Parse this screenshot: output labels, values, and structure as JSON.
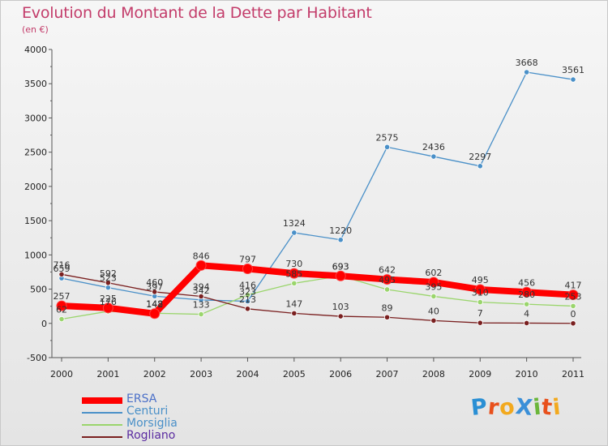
{
  "header": {
    "title": "Evolution du Montant de la Dette par Habitant",
    "subtitle": "(en €)"
  },
  "brand": {
    "text": "ProXiti",
    "colors": [
      "#2a8fd4",
      "#e8501c",
      "#f2a91e",
      "#3a8fd8",
      "#6bb63a",
      "#e8501c",
      "#f2a91e"
    ]
  },
  "chart_data": {
    "type": "line",
    "title": "Evolution du Montant de la Dette par Habitant",
    "subtitle": "(en €)",
    "xlabel": "",
    "ylabel": "",
    "x": [
      "2000",
      "2001",
      "2002",
      "2003",
      "2004",
      "2005",
      "2006",
      "2007",
      "2008",
      "2009",
      "2010",
      "2011"
    ],
    "ylim": [
      -500,
      4000
    ],
    "yticks": [
      "-500",
      "0",
      "500",
      "1000",
      "1500",
      "2000",
      "2500",
      "3000",
      "3500",
      "4000"
    ],
    "grid": false,
    "legend_position": "bottom-left",
    "series": [
      {
        "name": "ERSA",
        "color": "#ff0000",
        "values": [
          257,
          225,
          142,
          846,
          797,
          730,
          693,
          642,
          602,
          495,
          456,
          417
        ],
        "labels": [
          "257",
          "225",
          "142",
          "846",
          "797",
          "730",
          "693",
          "642",
          "602",
          "495",
          "456",
          "417"
        ]
      },
      {
        "name": "Centuri",
        "color": "#4a90c8",
        "values": [
          659,
          523,
          397,
          342,
          323,
          1324,
          1220,
          2575,
          2436,
          2297,
          3668,
          3561
        ],
        "labels": [
          "659",
          "523",
          "397",
          "342",
          "323",
          "1324",
          "1220",
          "2575",
          "2436",
          "2297",
          "3668",
          "3561"
        ]
      },
      {
        "name": "Morsiglia",
        "color": "#9ad56c",
        "values": [
          62,
          176,
          148,
          133,
          416,
          585,
          693,
          495,
          395,
          310,
          280,
          253
        ],
        "labels": [
          "62",
          "176",
          "148",
          "133",
          "416",
          "585",
          "693",
          "495",
          "395",
          "310",
          "280",
          "253"
        ]
      },
      {
        "name": "Rogliano",
        "color": "#7a2020",
        "values": [
          716,
          592,
          460,
          394,
          213,
          147,
          103,
          89,
          40,
          7,
          4,
          0
        ],
        "labels": [
          "716",
          "592",
          "460",
          "394",
          "213",
          "147",
          "103",
          "89",
          "40",
          "7",
          "4",
          "0"
        ]
      }
    ]
  }
}
